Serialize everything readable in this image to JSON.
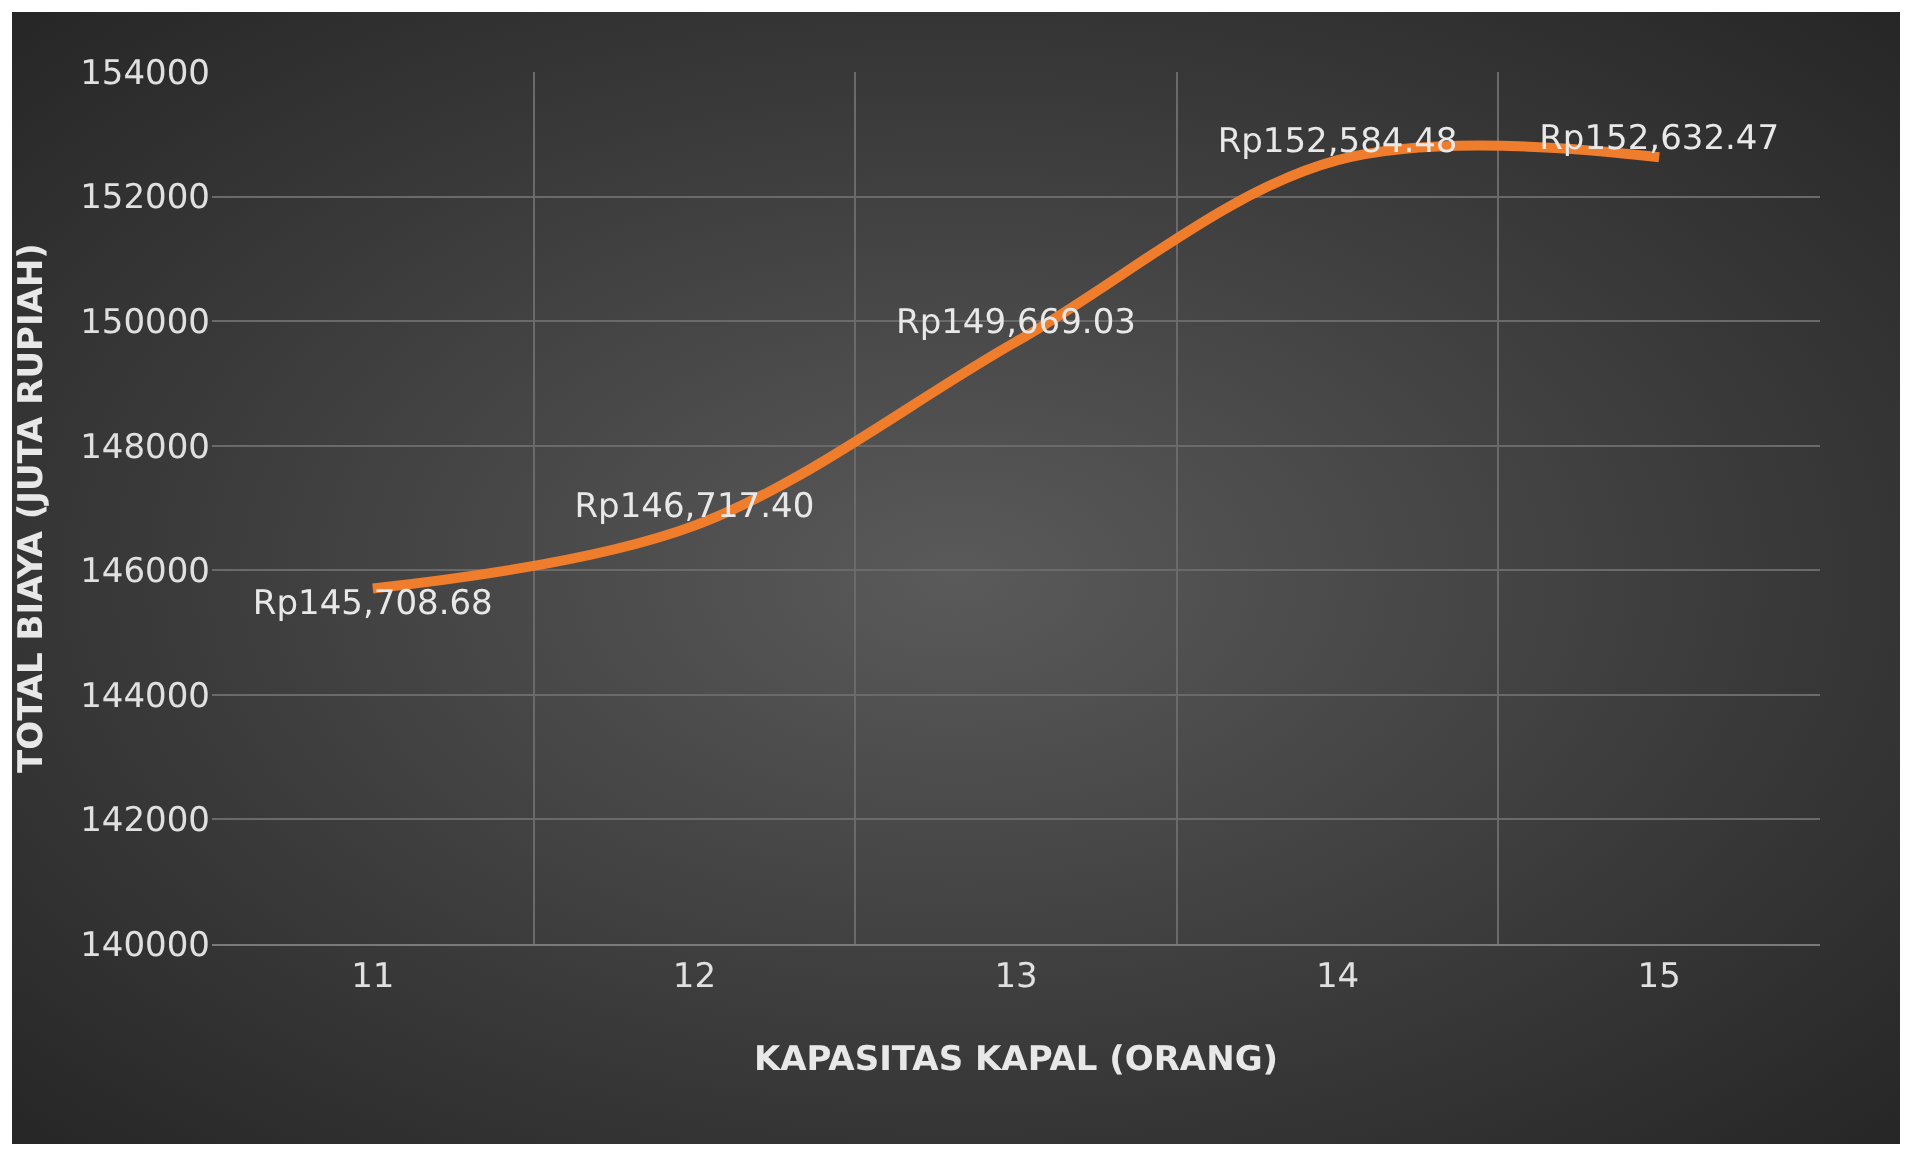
{
  "chart_data": {
    "type": "line",
    "xlabel": "KAPASITAS KAPAL (ORANG)",
    "ylabel": "TOTAL BIAYA (JUTA RUPIAH)",
    "categories": [
      "11",
      "12",
      "13",
      "14",
      "15"
    ],
    "series": [
      {
        "color": "#f07d2c",
        "values": [
          145708.68,
          146717.4,
          149669.03,
          152584.48,
          152632.47
        ],
        "value_labels": [
          "Rp145,708.68",
          "Rp146,717.40",
          "Rp149,669.03",
          "Rp152,584.48",
          "Rp152,632.47"
        ]
      }
    ],
    "ylim": [
      140000,
      154000
    ],
    "yticks": [
      140000,
      142000,
      144000,
      146000,
      148000,
      150000,
      152000,
      154000
    ],
    "grid": true,
    "marker": "none",
    "line_style": "solid"
  }
}
